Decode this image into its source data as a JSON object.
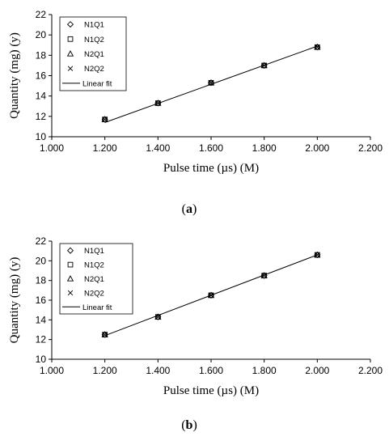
{
  "chart_data": [
    {
      "type": "scatter",
      "caption": "(a)",
      "xlabel": "Pulse time (µs) (M)",
      "ylabel": "Quantity (mg) (y)",
      "xlim": [
        1.0,
        2.2
      ],
      "ylim": [
        10,
        22
      ],
      "xticks": [
        "1.000",
        "1.200",
        "1.400",
        "1.600",
        "1.800",
        "2.000",
        "2.200"
      ],
      "yticks": [
        "10",
        "12",
        "14",
        "16",
        "18",
        "20",
        "22"
      ],
      "x": [
        1.2,
        1.4,
        1.6,
        1.8,
        2.0
      ],
      "series": [
        {
          "name": "N1Q1",
          "marker": "diamond",
          "values": [
            11.7,
            13.3,
            15.3,
            17.0,
            18.8
          ]
        },
        {
          "name": "N1Q2",
          "marker": "square",
          "values": [
            11.7,
            13.3,
            15.3,
            17.0,
            18.8
          ]
        },
        {
          "name": "N2Q1",
          "marker": "triangle",
          "values": [
            11.7,
            13.3,
            15.3,
            17.0,
            18.8
          ]
        },
        {
          "name": "N2Q2",
          "marker": "x",
          "values": [
            11.7,
            13.3,
            15.3,
            17.0,
            18.8
          ]
        }
      ],
      "fit": {
        "name": "Linear fit",
        "x": [
          1.2,
          2.0
        ],
        "y": [
          11.4,
          18.9
        ]
      },
      "legend_position": "top-left",
      "grid": false
    },
    {
      "type": "scatter",
      "caption": "(b)",
      "xlabel": "Pulse time (µs) (M)",
      "ylabel": "Quantity (mg) (y)",
      "xlim": [
        1.0,
        2.2
      ],
      "ylim": [
        10,
        22
      ],
      "xticks": [
        "1.000",
        "1.200",
        "1.400",
        "1.600",
        "1.800",
        "2.000",
        "2.200"
      ],
      "yticks": [
        "10",
        "12",
        "14",
        "16",
        "18",
        "20",
        "22"
      ],
      "x": [
        1.2,
        1.4,
        1.6,
        1.8,
        2.0
      ],
      "series": [
        {
          "name": "N1Q1",
          "marker": "diamond",
          "values": [
            12.5,
            14.3,
            16.5,
            18.5,
            20.6
          ]
        },
        {
          "name": "N1Q2",
          "marker": "square",
          "values": [
            12.5,
            14.3,
            16.5,
            18.5,
            20.6
          ]
        },
        {
          "name": "N2Q1",
          "marker": "triangle",
          "values": [
            12.5,
            14.3,
            16.5,
            18.5,
            20.6
          ]
        },
        {
          "name": "N2Q2",
          "marker": "x",
          "values": [
            12.5,
            14.3,
            16.5,
            18.5,
            20.6
          ]
        }
      ],
      "fit": {
        "name": "Linear fit",
        "x": [
          1.2,
          2.0
        ],
        "y": [
          12.4,
          20.6
        ]
      },
      "legend_position": "top-left",
      "grid": false
    }
  ]
}
